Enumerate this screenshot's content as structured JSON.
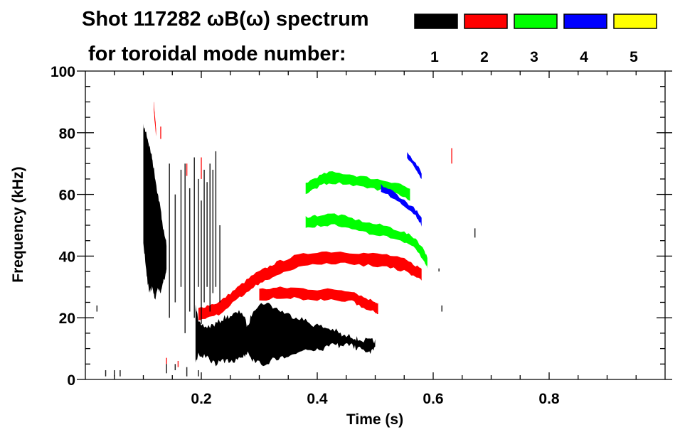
{
  "chart_data": {
    "type": "heatmap",
    "title": "Shot 117282 ωB(ω) spectrum",
    "subtitle": "for toroidal mode number:",
    "xlabel": "Time (s)",
    "ylabel": "Frequency (kHz)",
    "xlim": [
      0,
      1.0
    ],
    "ylim": [
      0,
      100
    ],
    "xticks": [
      0.2,
      0.4,
      0.6,
      0.8
    ],
    "xtick_labels": [
      "0.2",
      "0.4",
      "0.6",
      "0.8"
    ],
    "yticks": [
      0,
      20,
      40,
      60,
      80,
      100
    ],
    "ytick_labels": [
      "0",
      "20",
      "40",
      "60",
      "80",
      "100"
    ],
    "legend": [
      {
        "label": "1",
        "color": "#000000"
      },
      {
        "label": "2",
        "color": "#ff0000"
      },
      {
        "label": "3",
        "color": "#00ff00"
      },
      {
        "label": "4",
        "color": "#0000ff"
      },
      {
        "label": "5",
        "color": "#ffff00"
      }
    ],
    "bands": [
      {
        "mode": 1,
        "name": "n1-early-broadband",
        "points": [
          [
            0.1,
            45,
            82
          ],
          [
            0.105,
            35,
            80
          ],
          [
            0.11,
            28,
            76
          ],
          [
            0.115,
            30,
            72
          ],
          [
            0.12,
            26,
            66
          ],
          [
            0.125,
            30,
            60
          ],
          [
            0.13,
            28,
            55
          ],
          [
            0.135,
            32,
            48
          ],
          [
            0.14,
            35,
            44
          ]
        ]
      },
      {
        "mode": 1,
        "name": "n1-main",
        "points": [
          [
            0.19,
            6,
            25
          ],
          [
            0.195,
            8,
            18
          ],
          [
            0.21,
            7,
            17
          ],
          [
            0.225,
            5,
            18
          ],
          [
            0.24,
            6,
            20
          ],
          [
            0.255,
            6,
            21
          ],
          [
            0.27,
            7,
            22
          ],
          [
            0.28,
            9,
            17
          ],
          [
            0.29,
            6,
            23
          ],
          [
            0.31,
            5,
            25
          ],
          [
            0.33,
            7,
            23
          ],
          [
            0.35,
            8,
            21
          ],
          [
            0.37,
            9,
            20
          ],
          [
            0.39,
            10,
            18
          ],
          [
            0.41,
            10,
            17
          ],
          [
            0.43,
            11,
            16
          ],
          [
            0.445,
            11,
            14
          ],
          [
            0.46,
            11,
            14
          ],
          [
            0.47,
            10,
            13
          ],
          [
            0.49,
            9,
            12.5
          ],
          [
            0.5,
            10,
            12.5
          ]
        ]
      }
    ],
    "traces": [
      {
        "mode": 2,
        "name": "n2-upper",
        "width_khz": 3,
        "points": [
          [
            0.195,
            21
          ],
          [
            0.21,
            22
          ],
          [
            0.23,
            23
          ],
          [
            0.25,
            26
          ],
          [
            0.27,
            29
          ],
          [
            0.29,
            32
          ],
          [
            0.31,
            34
          ],
          [
            0.33,
            36
          ],
          [
            0.36,
            38
          ],
          [
            0.4,
            39.5
          ],
          [
            0.44,
            39.5
          ],
          [
            0.48,
            39
          ],
          [
            0.52,
            38.5
          ],
          [
            0.55,
            37
          ],
          [
            0.57,
            35
          ],
          [
            0.58,
            34
          ]
        ]
      },
      {
        "mode": 2,
        "name": "n2-lower",
        "width_khz": 2.5,
        "points": [
          [
            0.3,
            27.5
          ],
          [
            0.33,
            28
          ],
          [
            0.36,
            28
          ],
          [
            0.4,
            27.5
          ],
          [
            0.43,
            27.5
          ],
          [
            0.46,
            27
          ],
          [
            0.48,
            25
          ],
          [
            0.5,
            23.5
          ],
          [
            0.505,
            23
          ]
        ]
      },
      {
        "mode": 3,
        "name": "n3-upper",
        "width_khz": 2.5,
        "points": [
          [
            0.38,
            62
          ],
          [
            0.4,
            64
          ],
          [
            0.42,
            65.5
          ],
          [
            0.45,
            65
          ],
          [
            0.48,
            64
          ],
          [
            0.51,
            63
          ],
          [
            0.54,
            62
          ],
          [
            0.56,
            60
          ]
        ]
      },
      {
        "mode": 3,
        "name": "n3-middle",
        "width_khz": 2.5,
        "points": [
          [
            0.38,
            51
          ],
          [
            0.4,
            51.5
          ],
          [
            0.43,
            52
          ],
          [
            0.46,
            50.5
          ],
          [
            0.49,
            49
          ],
          [
            0.52,
            48
          ],
          [
            0.55,
            46
          ],
          [
            0.57,
            44
          ],
          [
            0.585,
            40
          ],
          [
            0.59,
            38
          ]
        ]
      },
      {
        "mode": 4,
        "name": "n4-lower",
        "width_khz": 1.2,
        "points": [
          [
            0.51,
            62
          ],
          [
            0.53,
            60
          ],
          [
            0.55,
            57
          ],
          [
            0.57,
            54
          ],
          [
            0.58,
            51
          ]
        ]
      },
      {
        "mode": 4,
        "name": "n4-upper",
        "width_khz": 1.2,
        "points": [
          [
            0.555,
            73
          ],
          [
            0.57,
            69
          ],
          [
            0.58,
            66
          ]
        ]
      },
      {
        "mode": 2,
        "name": "n2-early",
        "width_khz": 2,
        "points": [
          [
            0.118,
            89
          ],
          [
            0.12,
            84
          ],
          [
            0.122,
            80
          ]
        ]
      }
    ],
    "streaks": [
      {
        "mode": 1,
        "points": [
          [
            0.145,
            20,
            70
          ],
          [
            0.155,
            25,
            60
          ],
          [
            0.165,
            30,
            68
          ],
          [
            0.172,
            15,
            70
          ],
          [
            0.18,
            22,
            62
          ],
          [
            0.188,
            20,
            72
          ],
          [
            0.195,
            30,
            65
          ],
          [
            0.2,
            18,
            58
          ],
          [
            0.205,
            25,
            68
          ],
          [
            0.21,
            30,
            64
          ],
          [
            0.215,
            22,
            70
          ],
          [
            0.22,
            28,
            68
          ],
          [
            0.225,
            30,
            74
          ],
          [
            0.232,
            25,
            50
          ],
          [
            0.615,
            22,
            24
          ],
          [
            0.61,
            35,
            36
          ],
          [
            0.672,
            46,
            49
          ]
        ]
      },
      {
        "mode": 2,
        "points": [
          [
            0.13,
            78,
            82
          ],
          [
            0.175,
            66,
            70
          ],
          [
            0.2,
            65,
            72
          ],
          [
            0.632,
            70,
            75
          ],
          [
            0.14,
            5,
            7
          ],
          [
            0.16,
            4,
            6
          ]
        ]
      },
      {
        "mode": 1,
        "points": [
          [
            0.035,
            1,
            3
          ],
          [
            0.05,
            1,
            3
          ],
          [
            0.06,
            1,
            3
          ],
          [
            0.02,
            22,
            24
          ],
          [
            0.14,
            2,
            5
          ],
          [
            0.155,
            3,
            5
          ],
          [
            0.175,
            1,
            4
          ],
          [
            0.195,
            1,
            3
          ]
        ]
      }
    ]
  }
}
